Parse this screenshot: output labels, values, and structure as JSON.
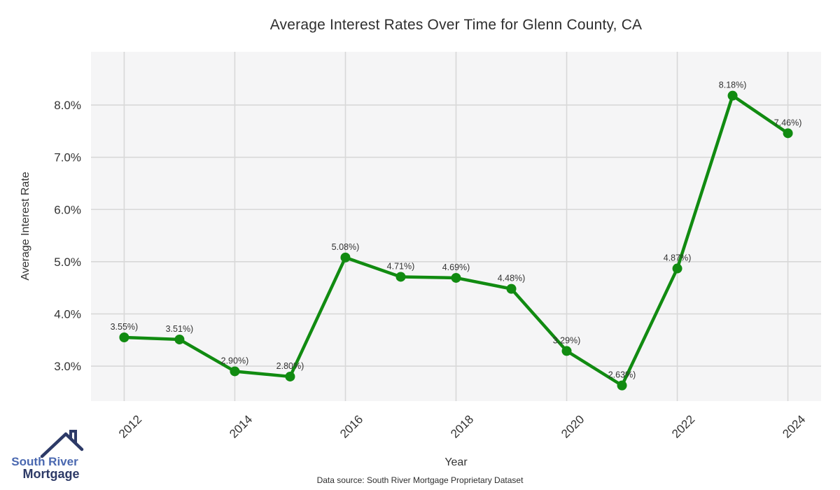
{
  "chart_data": {
    "type": "line",
    "title": "Average Interest Rates Over Time for Glenn County, CA",
    "xlabel": "Year",
    "ylabel": "Average Interest Rate",
    "x": [
      2012,
      2013,
      2014,
      2015,
      2016,
      2017,
      2018,
      2019,
      2020,
      2021,
      2022,
      2023,
      2024
    ],
    "values": [
      3.55,
      3.51,
      2.9,
      2.8,
      5.08,
      4.71,
      4.69,
      4.48,
      3.29,
      2.63,
      4.87,
      8.18,
      7.46
    ],
    "point_labels": [
      "3.55%)",
      "3.51%)",
      "2.90%)",
      "2.80%)",
      "5.08%)",
      "4.71%)",
      "4.69%)",
      "4.48%)",
      "3.29%)",
      "2.63%)",
      "4.87%)",
      "8.18%)",
      "7.46%)"
    ],
    "xlim": [
      2011.4,
      2024.6
    ],
    "ylim": [
      2.33,
      9.02
    ],
    "x_ticks": [
      2012,
      2014,
      2016,
      2018,
      2020,
      2022,
      2024
    ],
    "y_ticks": [
      3,
      4,
      5,
      6,
      7,
      8
    ],
    "y_tick_labels": [
      "3.0%",
      "4.0%",
      "5.0%",
      "6.0%",
      "7.0%",
      "8.0%"
    ],
    "grid": true,
    "legend": "none",
    "line_color": "#118b11",
    "plot_bg": "#f5f5f6",
    "grid_color": "#d8d8d8",
    "tick_color": "#333333",
    "label_color": "#333333"
  },
  "logo": {
    "line1": "South River",
    "line2": "Mortgage",
    "color1": "#4a68b0",
    "color2": "#2d3a67",
    "roof_color": "#2d3a67"
  },
  "footer": {
    "text": "Data source: South River Mortgage Proprietary Dataset"
  }
}
